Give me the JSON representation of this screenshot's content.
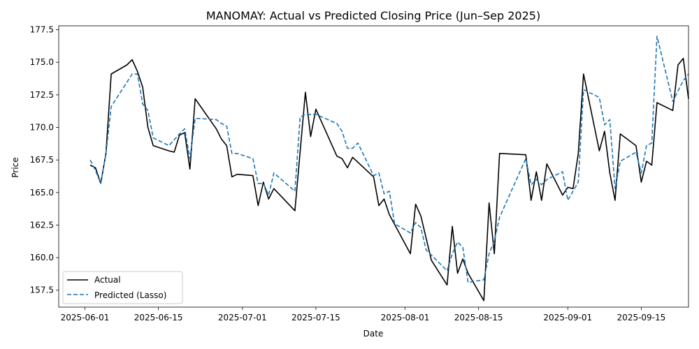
{
  "chart_data": {
    "type": "line",
    "title": "MANOMAY: Actual vs Predicted Closing Price (Jun–Sep 2025)",
    "xlabel": "Date",
    "ylabel": "Price",
    "xlim": [
      "2025-05-27",
      "2025-09-24"
    ],
    "ylim": [
      156.2,
      177.8
    ],
    "x_ticks": [
      "2025-06-01",
      "2025-06-15",
      "2025-07-01",
      "2025-07-15",
      "2025-08-01",
      "2025-08-15",
      "2025-09-01",
      "2025-09-15"
    ],
    "y_ticks": [
      157.5,
      160.0,
      162.5,
      165.0,
      167.5,
      170.0,
      172.5,
      175.0,
      177.5
    ],
    "y_tick_labels": [
      "157.5",
      "160.0",
      "162.5",
      "165.0",
      "167.5",
      "170.0",
      "172.5",
      "175.0",
      "177.5"
    ],
    "legend_position": "lower left",
    "grid": false,
    "series": [
      {
        "name": "Actual",
        "color": "#000000",
        "style": "solid",
        "points": [
          [
            "2025-06-02",
            167.1
          ],
          [
            "2025-06-03",
            166.9
          ],
          [
            "2025-06-04",
            165.7
          ],
          [
            "2025-06-05",
            168.0
          ],
          [
            "2025-06-06",
            174.1
          ],
          [
            "2025-06-09",
            174.8
          ],
          [
            "2025-06-10",
            175.2
          ],
          [
            "2025-06-11",
            174.3
          ],
          [
            "2025-06-12",
            173.1
          ],
          [
            "2025-06-13",
            170.0
          ],
          [
            "2025-06-14",
            168.6
          ],
          [
            "2025-06-17",
            168.2
          ],
          [
            "2025-06-18",
            168.1
          ],
          [
            "2025-06-19",
            169.4
          ],
          [
            "2025-06-20",
            169.6
          ],
          [
            "2025-06-21",
            166.8
          ],
          [
            "2025-06-22",
            172.2
          ],
          [
            "2025-06-26",
            169.9
          ],
          [
            "2025-06-27",
            169.1
          ],
          [
            "2025-06-28",
            168.6
          ],
          [
            "2025-06-29",
            166.2
          ],
          [
            "2025-06-30",
            166.4
          ],
          [
            "2025-07-03",
            166.3
          ],
          [
            "2025-07-04",
            164.0
          ],
          [
            "2025-07-05",
            165.8
          ],
          [
            "2025-07-06",
            164.5
          ],
          [
            "2025-07-07",
            165.3
          ],
          [
            "2025-07-11",
            163.6
          ],
          [
            "2025-07-13",
            172.7
          ],
          [
            "2025-07-14",
            169.3
          ],
          [
            "2025-07-15",
            171.4
          ],
          [
            "2025-07-19",
            167.8
          ],
          [
            "2025-07-20",
            167.6
          ],
          [
            "2025-07-21",
            166.9
          ],
          [
            "2025-07-22",
            167.7
          ],
          [
            "2025-07-26",
            166.2
          ],
          [
            "2025-07-27",
            164.0
          ],
          [
            "2025-07-28",
            164.5
          ],
          [
            "2025-07-29",
            163.3
          ],
          [
            "2025-08-02",
            160.3
          ],
          [
            "2025-08-03",
            164.1
          ],
          [
            "2025-08-04",
            163.2
          ],
          [
            "2025-08-05",
            161.5
          ],
          [
            "2025-08-06",
            159.8
          ],
          [
            "2025-08-09",
            157.9
          ],
          [
            "2025-08-10",
            162.4
          ],
          [
            "2025-08-11",
            158.8
          ],
          [
            "2025-08-12",
            159.9
          ],
          [
            "2025-08-13",
            158.8
          ],
          [
            "2025-08-16",
            156.7
          ],
          [
            "2025-08-17",
            164.2
          ],
          [
            "2025-08-18",
            160.3
          ],
          [
            "2025-08-19",
            168.0
          ],
          [
            "2025-08-24",
            167.9
          ],
          [
            "2025-08-25",
            164.4
          ],
          [
            "2025-08-26",
            166.6
          ],
          [
            "2025-08-27",
            164.4
          ],
          [
            "2025-08-28",
            167.2
          ],
          [
            "2025-08-31",
            164.8
          ],
          [
            "2025-09-01",
            165.4
          ],
          [
            "2025-09-02",
            165.3
          ],
          [
            "2025-09-03",
            168.0
          ],
          [
            "2025-09-04",
            174.1
          ],
          [
            "2025-09-07",
            168.2
          ],
          [
            "2025-09-08",
            169.7
          ],
          [
            "2025-09-09",
            166.5
          ],
          [
            "2025-09-10",
            164.4
          ],
          [
            "2025-09-11",
            169.5
          ],
          [
            "2025-09-14",
            168.6
          ],
          [
            "2025-09-15",
            165.8
          ],
          [
            "2025-09-16",
            167.4
          ],
          [
            "2025-09-17",
            167.1
          ],
          [
            "2025-09-18",
            171.9
          ],
          [
            "2025-09-21",
            171.3
          ],
          [
            "2025-09-22",
            174.8
          ],
          [
            "2025-09-23",
            175.3
          ],
          [
            "2025-09-24",
            172.2
          ]
        ]
      },
      {
        "name": "Predicted (Lasso)",
        "color": "#1f77b4",
        "style": "dashed",
        "points": [
          [
            "2025-06-02",
            167.5
          ],
          [
            "2025-06-03",
            166.7
          ],
          [
            "2025-06-04",
            165.7
          ],
          [
            "2025-06-05",
            168.0
          ],
          [
            "2025-06-06",
            171.6
          ],
          [
            "2025-06-10",
            174.1
          ],
          [
            "2025-06-11",
            174.1
          ],
          [
            "2025-06-12",
            171.8
          ],
          [
            "2025-06-13",
            171.3
          ],
          [
            "2025-06-14",
            169.2
          ],
          [
            "2025-06-17",
            168.6
          ],
          [
            "2025-06-19",
            169.5
          ],
          [
            "2025-06-20",
            169.9
          ],
          [
            "2025-06-21",
            167.6
          ],
          [
            "2025-06-22",
            170.7
          ],
          [
            "2025-06-26",
            170.6
          ],
          [
            "2025-06-27",
            170.3
          ],
          [
            "2025-06-28",
            170.1
          ],
          [
            "2025-06-29",
            168.0
          ],
          [
            "2025-06-30",
            168.0
          ],
          [
            "2025-07-03",
            167.6
          ],
          [
            "2025-07-04",
            165.7
          ],
          [
            "2025-07-05",
            165.7
          ],
          [
            "2025-07-06",
            164.8
          ],
          [
            "2025-07-07",
            166.5
          ],
          [
            "2025-07-11",
            165.1
          ],
          [
            "2025-07-12",
            170.8
          ],
          [
            "2025-07-13",
            171.0
          ],
          [
            "2025-07-15",
            171.0
          ],
          [
            "2025-07-19",
            170.3
          ],
          [
            "2025-07-20",
            169.7
          ],
          [
            "2025-07-21",
            168.4
          ],
          [
            "2025-07-22",
            168.4
          ],
          [
            "2025-07-23",
            168.8
          ],
          [
            "2025-07-26",
            166.3
          ],
          [
            "2025-07-27",
            166.5
          ],
          [
            "2025-07-28",
            164.9
          ],
          [
            "2025-07-29",
            165.1
          ],
          [
            "2025-07-30",
            162.6
          ],
          [
            "2025-08-02",
            161.9
          ],
          [
            "2025-08-03",
            162.7
          ],
          [
            "2025-08-04",
            162.3
          ],
          [
            "2025-08-05",
            160.6
          ],
          [
            "2025-08-09",
            159.0
          ],
          [
            "2025-08-10",
            160.3
          ],
          [
            "2025-08-11",
            161.2
          ],
          [
            "2025-08-12",
            160.8
          ],
          [
            "2025-08-13",
            158.1
          ],
          [
            "2025-08-16",
            158.3
          ],
          [
            "2025-08-17",
            160.3
          ],
          [
            "2025-08-18",
            161.3
          ],
          [
            "2025-08-19",
            163.1
          ],
          [
            "2025-08-24",
            167.6
          ],
          [
            "2025-08-25",
            165.6
          ],
          [
            "2025-08-26",
            166.0
          ],
          [
            "2025-08-27",
            165.6
          ],
          [
            "2025-08-28",
            166.0
          ],
          [
            "2025-08-31",
            166.6
          ],
          [
            "2025-09-01",
            164.4
          ],
          [
            "2025-09-02",
            165.1
          ],
          [
            "2025-09-03",
            165.8
          ],
          [
            "2025-09-04",
            172.9
          ],
          [
            "2025-09-07",
            172.3
          ],
          [
            "2025-09-08",
            170.2
          ],
          [
            "2025-09-09",
            170.6
          ],
          [
            "2025-09-10",
            165.3
          ],
          [
            "2025-09-11",
            167.4
          ],
          [
            "2025-09-14",
            168.1
          ],
          [
            "2025-09-15",
            166.5
          ],
          [
            "2025-09-16",
            168.6
          ],
          [
            "2025-09-17",
            168.8
          ],
          [
            "2025-09-18",
            177.0
          ],
          [
            "2025-09-21",
            172.0
          ],
          [
            "2025-09-22",
            172.8
          ],
          [
            "2025-09-23",
            173.6
          ],
          [
            "2025-09-24",
            174.1
          ]
        ]
      }
    ]
  }
}
